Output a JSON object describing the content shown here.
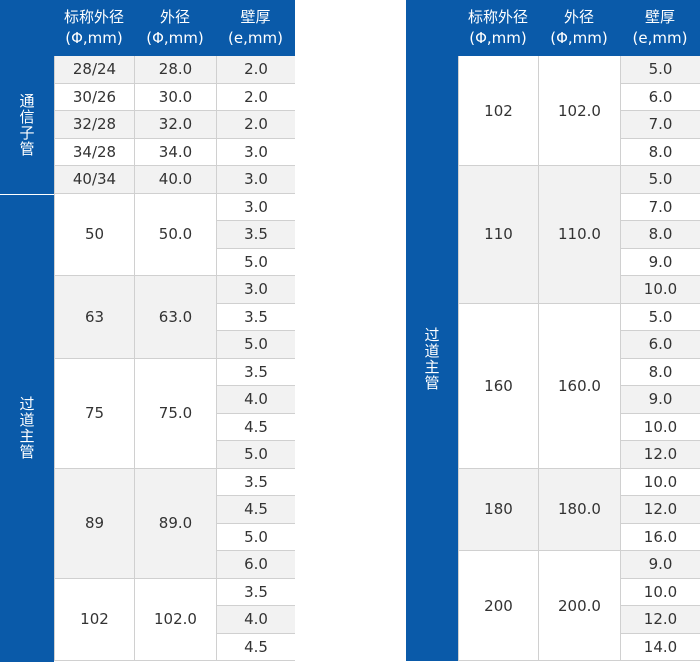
{
  "headers": {
    "nominal_line1": "标称外径",
    "nominal_line2": "(Φ,mm)",
    "outer_line1": "外径",
    "outer_line2": "(Φ,mm)",
    "wall_line1": "壁厚",
    "wall_line2": "(e,mm)"
  },
  "left": {
    "groups": [
      {
        "category": "通信子管",
        "rows": [
          {
            "nominal": "28/24",
            "outer": "28.0",
            "walls": [
              "2.0"
            ]
          },
          {
            "nominal": "30/26",
            "outer": "30.0",
            "walls": [
              "2.0"
            ]
          },
          {
            "nominal": "32/28",
            "outer": "32.0",
            "walls": [
              "2.0"
            ]
          },
          {
            "nominal": "34/28",
            "outer": "34.0",
            "walls": [
              "3.0"
            ]
          },
          {
            "nominal": "40/34",
            "outer": "40.0",
            "walls": [
              "3.0"
            ]
          }
        ]
      },
      {
        "category": "过道主管",
        "rows": [
          {
            "nominal": "50",
            "outer": "50.0",
            "walls": [
              "3.0",
              "3.5",
              "5.0"
            ]
          },
          {
            "nominal": "63",
            "outer": "63.0",
            "walls": [
              "3.0",
              "3.5",
              "5.0"
            ]
          },
          {
            "nominal": "75",
            "outer": "75.0",
            "walls": [
              "3.5",
              "4.0",
              "4.5",
              "5.0"
            ]
          },
          {
            "nominal": "89",
            "outer": "89.0",
            "walls": [
              "3.5",
              "4.5",
              "5.0",
              "6.0"
            ]
          },
          {
            "nominal": "102",
            "outer": "102.0",
            "walls": [
              "3.5",
              "4.0",
              "4.5"
            ]
          }
        ]
      }
    ]
  },
  "right": {
    "groups": [
      {
        "category": "过道主管",
        "rows": [
          {
            "nominal": "102",
            "outer": "102.0",
            "walls": [
              "5.0",
              "6.0",
              "7.0",
              "8.0"
            ]
          },
          {
            "nominal": "110",
            "outer": "110.0",
            "walls": [
              "5.0",
              "7.0",
              "8.0",
              "9.0",
              "10.0"
            ]
          },
          {
            "nominal": "160",
            "outer": "160.0",
            "walls": [
              "5.0",
              "6.0",
              "8.0",
              "9.0",
              "10.0",
              "12.0"
            ]
          },
          {
            "nominal": "180",
            "outer": "180.0",
            "walls": [
              "10.0",
              "12.0",
              "16.0"
            ]
          },
          {
            "nominal": "200",
            "outer": "200.0",
            "walls": [
              "9.0",
              "10.0",
              "12.0",
              "14.0"
            ]
          }
        ]
      }
    ]
  },
  "colors": {
    "header_bg": "#0a5aa9",
    "header_text": "#ffffff",
    "row_shade": "#f2f2f2",
    "row_plain": "#ffffff",
    "grid_line": "#d0d0d0"
  }
}
